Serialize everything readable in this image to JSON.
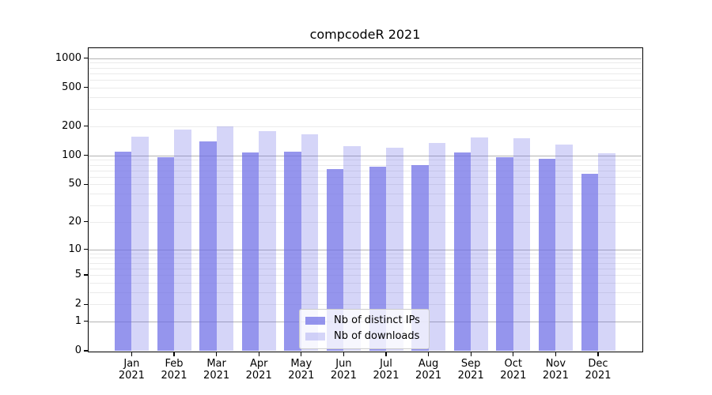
{
  "chart_data": {
    "type": "bar",
    "title": "compcodeR 2021",
    "xlabel": "",
    "ylabel": "",
    "yscale": "log1p",
    "ylim": [
      0,
      1270
    ],
    "yticks": [
      0,
      1,
      2,
      5,
      10,
      20,
      50,
      100,
      200,
      500,
      1000
    ],
    "grid": "horizontal; faint log minors (2-9 per decade) + darker decade lines, drawn under bars",
    "legend": {
      "position": "inside, lower center of plot"
    },
    "categories": [
      {
        "month": "Jan",
        "year": "2021"
      },
      {
        "month": "Feb",
        "year": "2021"
      },
      {
        "month": "Mar",
        "year": "2021"
      },
      {
        "month": "Apr",
        "year": "2021"
      },
      {
        "month": "May",
        "year": "2021"
      },
      {
        "month": "Jun",
        "year": "2021"
      },
      {
        "month": "Jul",
        "year": "2021"
      },
      {
        "month": "Aug",
        "year": "2021"
      },
      {
        "month": "Sep",
        "year": "2021"
      },
      {
        "month": "Oct",
        "year": "2021"
      },
      {
        "month": "Nov",
        "year": "2021"
      },
      {
        "month": "Dec",
        "year": "2021"
      }
    ],
    "series": [
      {
        "name": "Nb of distinct IPs",
        "color": "#6C6CE6B8",
        "values": [
          109,
          96,
          140,
          108,
          109,
          72,
          76,
          79,
          107,
          95,
          93,
          65
        ]
      },
      {
        "name": "Nb of downloads",
        "color": "#6C6CE648",
        "values": [
          155,
          185,
          199,
          177,
          164,
          124,
          119,
          135,
          153,
          151,
          129,
          106
        ]
      }
    ]
  },
  "colors": {
    "grid_major": "#b3b3b3",
    "grid_minor": "#ebebeb",
    "spine": "#000000",
    "text": "#000000",
    "background": "#ffffff",
    "legend_border": "#cccccc"
  }
}
